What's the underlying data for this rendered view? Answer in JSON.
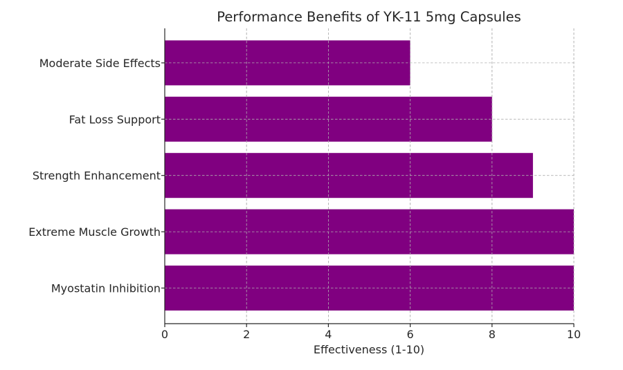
{
  "chart_data": {
    "type": "bar",
    "orientation": "horizontal",
    "title": "Performance Benefits of YK-11 5mg Capsules",
    "xlabel": "Effectiveness (1-10)",
    "ylabel": "",
    "categories": [
      "Myostatin Inhibition",
      "Extreme Muscle Growth",
      "Strength Enhancement",
      "Fat Loss Support",
      "Moderate Side Effects"
    ],
    "values": [
      10,
      10,
      9,
      8,
      6
    ],
    "xlim": [
      0,
      10
    ],
    "xticks": [
      "0",
      "2",
      "4",
      "6",
      "8",
      "10"
    ],
    "grid": true,
    "bar_color": "#800080"
  }
}
